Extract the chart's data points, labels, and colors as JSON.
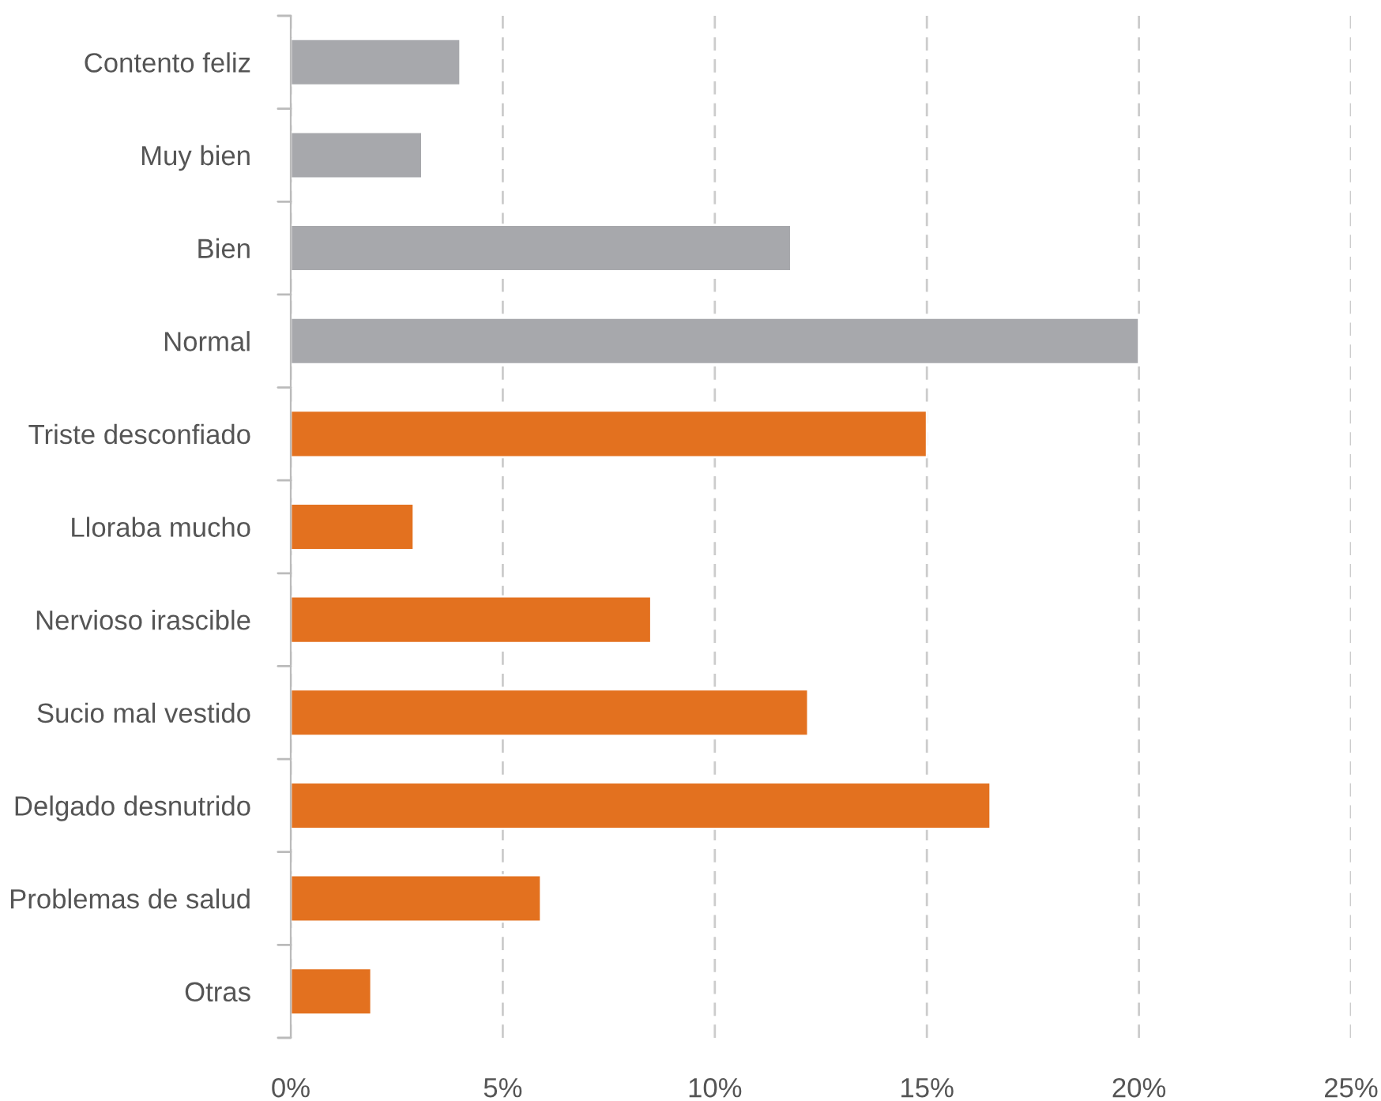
{
  "chart_data": {
    "type": "bar",
    "orientation": "horizontal",
    "categories": [
      "Contento feliz",
      "Muy bien",
      "Bien",
      "Normal",
      "Triste desconfiado",
      "Lloraba mucho",
      "Nervioso irascible",
      "Sucio mal vestido",
      "Delgado desnutrido",
      "Problemas de salud",
      "Otras"
    ],
    "values": [
      4.0,
      3.1,
      11.8,
      20.0,
      15.0,
      2.9,
      8.5,
      12.2,
      16.5,
      5.9,
      1.9
    ],
    "colors": [
      "#a7a8ac",
      "#a7a8ac",
      "#a7a8ac",
      "#a7a8ac",
      "#e3711f",
      "#e3711f",
      "#e3711f",
      "#e3711f",
      "#e3711f",
      "#e3711f",
      "#e3711f"
    ],
    "xlim": [
      0,
      25
    ],
    "xticks": [
      {
        "value": 0,
        "label": "0%"
      },
      {
        "value": 5,
        "label": "5%"
      },
      {
        "value": 10,
        "label": "10%"
      },
      {
        "value": 15,
        "label": "15%"
      },
      {
        "value": 20,
        "label": "20%"
      },
      {
        "value": 25,
        "label": "25%"
      }
    ],
    "grid": "x",
    "legend": false
  }
}
